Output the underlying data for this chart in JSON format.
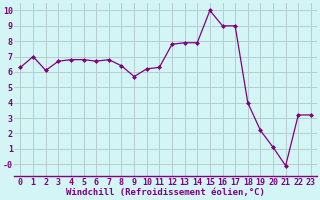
{
  "x": [
    0,
    1,
    2,
    3,
    4,
    5,
    6,
    7,
    8,
    9,
    10,
    11,
    12,
    13,
    14,
    15,
    16,
    17,
    18,
    19,
    20,
    21,
    22,
    23
  ],
  "y": [
    6.3,
    7.0,
    6.1,
    6.7,
    6.8,
    6.8,
    6.7,
    6.8,
    6.4,
    5.7,
    6.2,
    6.3,
    7.8,
    7.9,
    7.9,
    10.0,
    9.0,
    9.0,
    4.0,
    2.2,
    1.1,
    -0.1,
    3.2,
    3.2
  ],
  "line_color": "#800080",
  "marker": "D",
  "marker_size": 2.0,
  "linewidth": 0.9,
  "bg_color": "#d4f5f5",
  "grid_color": "#b0c8c8",
  "xlabel": "Windchill (Refroidissement éolien,°C)",
  "xlabel_fontsize": 6.5,
  "tick_fontsize": 6,
  "label_color": "#800080",
  "ylim": [
    -0.8,
    10.5
  ],
  "xlim": [
    -0.5,
    23.5
  ],
  "ytick_labels": [
    "10",
    "9",
    "8",
    "7",
    "6",
    "5",
    "4",
    "3",
    "2",
    "1",
    "-0"
  ],
  "ytick_vals": [
    10,
    9,
    8,
    7,
    6,
    5,
    4,
    3,
    2,
    1,
    0
  ],
  "xticks": [
    0,
    1,
    2,
    3,
    4,
    5,
    6,
    7,
    8,
    9,
    10,
    11,
    12,
    13,
    14,
    15,
    16,
    17,
    18,
    19,
    20,
    21,
    22,
    23
  ]
}
